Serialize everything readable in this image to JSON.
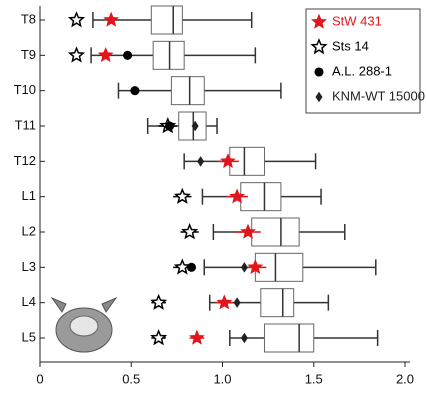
{
  "chart_data": {
    "type": "boxplot",
    "categories": [
      "T8",
      "T9",
      "T10",
      "T11",
      "T12",
      "L1",
      "L2",
      "L3",
      "L4",
      "L5"
    ],
    "boxes": [
      {
        "whislo": 0.29,
        "q1": 0.61,
        "med": 0.73,
        "q3": 0.78,
        "whishi": 1.16
      },
      {
        "whislo": 0.28,
        "q1": 0.62,
        "med": 0.71,
        "q3": 0.79,
        "whishi": 1.18
      },
      {
        "whislo": 0.43,
        "q1": 0.72,
        "med": 0.82,
        "q3": 0.9,
        "whishi": 1.32
      },
      {
        "whislo": 0.59,
        "q1": 0.76,
        "med": 0.84,
        "q3": 0.91,
        "whishi": 0.97
      },
      {
        "whislo": 0.79,
        "q1": 1.04,
        "med": 1.12,
        "q3": 1.23,
        "whishi": 1.51
      },
      {
        "whislo": 0.89,
        "q1": 1.1,
        "med": 1.23,
        "q3": 1.32,
        "whishi": 1.54
      },
      {
        "whislo": 0.95,
        "q1": 1.16,
        "med": 1.32,
        "q3": 1.42,
        "whishi": 1.67
      },
      {
        "whislo": 0.9,
        "q1": 1.18,
        "med": 1.29,
        "q3": 1.44,
        "whishi": 1.84
      },
      {
        "whislo": 0.93,
        "q1": 1.21,
        "med": 1.33,
        "q3": 1.39,
        "whishi": 1.58
      },
      {
        "whislo": 1.04,
        "q1": 1.23,
        "med": 1.42,
        "q3": 1.5,
        "whishi": 1.85
      }
    ],
    "series": [
      {
        "name": "StW 431",
        "color": "#e3151c",
        "marker": "star",
        "values": [
          0.39,
          0.36,
          null,
          null,
          1.03,
          1.08,
          1.14,
          1.18,
          1.01,
          0.86
        ],
        "errors": [
          null,
          null,
          null,
          null,
          0.06,
          0.06,
          0.07,
          0.06,
          0.05,
          0.04
        ]
      },
      {
        "name": "Sts 14",
        "color": "#000000",
        "marker": "open-star",
        "values": [
          0.2,
          0.2,
          null,
          0.7,
          null,
          0.78,
          0.82,
          0.78,
          0.65,
          0.65
        ],
        "errors": [
          null,
          null,
          null,
          0.05,
          null,
          0.05,
          0.05,
          0.05,
          0.04,
          0.04
        ]
      },
      {
        "name": "A.L. 288-1",
        "color": "#000000",
        "marker": "circle",
        "values": [
          null,
          0.48,
          0.52,
          0.71,
          null,
          null,
          null,
          0.83,
          null,
          null
        ]
      },
      {
        "name": "KNM-WT 15000",
        "color": "#222222",
        "marker": "diamond",
        "values": [
          null,
          null,
          null,
          0.85,
          0.88,
          null,
          null,
          1.12,
          1.08,
          1.12
        ]
      }
    ],
    "xlim": [
      0,
      2.0
    ],
    "xticks": [
      0,
      0.5,
      {
        "value": 1.0,
        "label": "1.0"
      },
      1.5,
      {
        "value": 2.0,
        "label": "2.0"
      }
    ],
    "legend": "upper right"
  }
}
